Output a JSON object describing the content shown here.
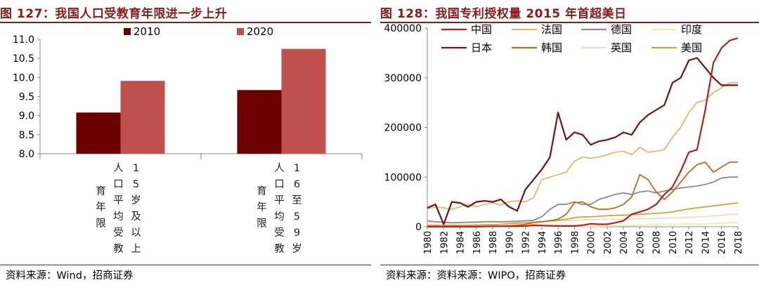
{
  "panels": [
    {
      "title": "图 127：我国人口受教育年限进一步上升",
      "source": "资料来源：Wind，招商证券"
    },
    {
      "title": "图 128：我国专利授权量 2015 年首超美日",
      "source": "资料来源：资料来源：WIPO，招商证券"
    }
  ],
  "chart_data": [
    {
      "type": "bar",
      "categories": [
        "人口平均受教育年限15岁及以上",
        "人口平均受教育年限16至59岁"
      ],
      "category_columns": [
        [
          [
            "人",
            "口",
            "平",
            "均",
            "受",
            "教"
          ],
          [
            "1",
            "5",
            "岁",
            "及",
            "以",
            "上"
          ],
          [
            "育",
            "年",
            "限"
          ]
        ],
        [
          [
            "人",
            "口",
            "平",
            "均",
            "受",
            "教"
          ],
          [
            "1",
            "6",
            "至",
            "5",
            "9",
            "岁"
          ],
          [
            "育",
            "年",
            "限"
          ]
        ]
      ],
      "series": [
        {
          "name": "2010",
          "color": "#6b0000",
          "values": [
            9.08,
            9.67
          ]
        },
        {
          "name": "2020",
          "color": "#c0504d",
          "values": [
            9.91,
            10.75
          ]
        }
      ],
      "ylim": [
        8.0,
        11.0
      ],
      "yticks": [
        "8.0",
        "8.5",
        "9.0",
        "9.5",
        "10.0",
        "10.5",
        "11.0"
      ],
      "legend_position": "top",
      "grid": false
    },
    {
      "type": "line",
      "x": [
        1980,
        1981,
        1982,
        1983,
        1984,
        1985,
        1986,
        1987,
        1988,
        1989,
        1990,
        1991,
        1992,
        1993,
        1994,
        1995,
        1996,
        1997,
        1998,
        1999,
        2000,
        2001,
        2002,
        2003,
        2004,
        2005,
        2006,
        2007,
        2008,
        2009,
        2010,
        2011,
        2012,
        2013,
        2014,
        2015,
        2016,
        2017,
        2018
      ],
      "xticks": [
        "1980",
        "1982",
        "1984",
        "1986",
        "1988",
        "1990",
        "1992",
        "1994",
        "1996",
        "1998",
        "2000",
        "2002",
        "2004",
        "2006",
        "2008",
        "2010",
        "2012",
        "2014",
        "2016",
        "2018"
      ],
      "ylim": [
        0,
        400000
      ],
      "yticks": [
        "0",
        "100000",
        "200000",
        "300000",
        "400000"
      ],
      "legend_position": "top-left",
      "grid": false,
      "series": [
        {
          "name": "中国",
          "color": "#b22222",
          "width": 2.2,
          "values": [
            0,
            0,
            0,
            0,
            0,
            50,
            200,
            500,
            1000,
            1000,
            1000,
            1000,
            1500,
            3000,
            2500,
            2000,
            1500,
            1500,
            1500,
            3000,
            6000,
            5000,
            5000,
            8000,
            12000,
            25000,
            30000,
            35000,
            45000,
            65000,
            80000,
            112000,
            150000,
            155000,
            235000,
            330000,
            360000,
            375000,
            380000
          ]
        },
        {
          "name": "法国",
          "color": "#e0b870",
          "width": 1.8,
          "values": [
            36000,
            40000,
            38000,
            35000,
            40000,
            45000,
            40000,
            45000,
            48000,
            44000,
            50000,
            52000,
            50000,
            58000,
            95000,
            100000,
            105000,
            110000,
            132000,
            140000,
            138000,
            140000,
            145000,
            150000,
            152000,
            145000,
            160000,
            150000,
            152000,
            155000,
            180000,
            200000,
            230000,
            250000,
            255000,
            270000,
            280000,
            290000,
            290000
          ]
        },
        {
          "name": "德国",
          "color": "#8c8c8c",
          "width": 1.8,
          "values": [
            12000,
            10000,
            9000,
            8000,
            8500,
            9000,
            9500,
            10000,
            10500,
            10000,
            10500,
            11000,
            12000,
            13000,
            20000,
            35000,
            45000,
            45000,
            50000,
            45000,
            45000,
            55000,
            60000,
            65000,
            68000,
            65000,
            70000,
            72000,
            68000,
            72000,
            75000,
            78000,
            80000,
            82000,
            85000,
            90000,
            98000,
            100000,
            100000
          ]
        },
        {
          "name": "印度",
          "color": "#f7e8b0",
          "width": 1.8,
          "values": [
            300,
            300,
            300,
            300,
            300,
            300,
            300,
            300,
            300,
            300,
            300,
            300,
            300,
            300,
            300,
            500,
            600,
            700,
            800,
            800,
            1000,
            1000,
            1500,
            1500,
            2000,
            2500,
            3000,
            4000,
            4500,
            5000,
            5000,
            5500,
            6000,
            5000,
            6000,
            6000,
            7000,
            8000,
            9000
          ]
        },
        {
          "name": "日本",
          "color": "#7a1010",
          "width": 2.2,
          "values": [
            38000,
            45000,
            5000,
            50000,
            48000,
            40000,
            50000,
            52000,
            50000,
            55000,
            40000,
            32000,
            75000,
            95000,
            115000,
            140000,
            230000,
            175000,
            190000,
            185000,
            165000,
            172000,
            175000,
            180000,
            190000,
            185000,
            210000,
            225000,
            235000,
            245000,
            290000,
            300000,
            335000,
            340000,
            320000,
            300000,
            285000,
            285000,
            285000
          ]
        },
        {
          "name": "韩国",
          "color": "#c06a1c",
          "width": 1.8,
          "values": [
            500,
            500,
            500,
            500,
            500,
            500,
            500,
            500,
            500,
            1000,
            2000,
            3000,
            5000,
            8000,
            10000,
            12000,
            15000,
            25000,
            48000,
            50000,
            40000,
            35000,
            35000,
            38000,
            45000,
            60000,
            105000,
            95000,
            70000,
            55000,
            70000,
            90000,
            110000,
            125000,
            130000,
            110000,
            120000,
            130000,
            130000
          ]
        },
        {
          "name": "英国",
          "color": "#f0dcc0",
          "width": 1.8,
          "values": [
            8000,
            9000,
            8000,
            7000,
            7000,
            8000,
            8000,
            9000,
            9000,
            9000,
            9000,
            9000,
            9000,
            9000,
            10000,
            10000,
            12000,
            12000,
            13000,
            14000,
            14000,
            15000,
            15000,
            15000,
            15000,
            16000,
            16000,
            16000,
            17000,
            17000,
            18000,
            18000,
            19000,
            20000,
            20000,
            22000,
            23000,
            25000,
            25000
          ]
        },
        {
          "name": "美国",
          "color": "#d4a040",
          "width": 1.8,
          "values": [
            3000,
            3000,
            2500,
            3000,
            3000,
            3000,
            3500,
            4000,
            4000,
            5000,
            6000,
            7000,
            8000,
            9000,
            10000,
            12000,
            13000,
            15000,
            18000,
            20000,
            20000,
            21000,
            22000,
            23000,
            23000,
            24000,
            25000,
            26000,
            27000,
            28000,
            30000,
            33000,
            36000,
            38000,
            40000,
            42000,
            44000,
            46000,
            48000
          ]
        }
      ]
    }
  ]
}
